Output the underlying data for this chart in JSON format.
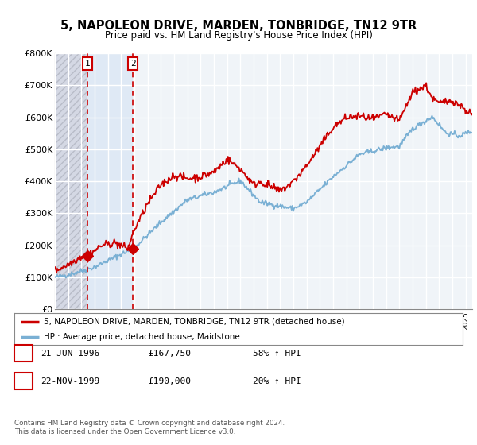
{
  "title": "5, NAPOLEON DRIVE, MARDEN, TONBRIDGE, TN12 9TR",
  "subtitle": "Price paid vs. HM Land Registry's House Price Index (HPI)",
  "legend_line1": "5, NAPOLEON DRIVE, MARDEN, TONBRIDGE, TN12 9TR (detached house)",
  "legend_line2": "HPI: Average price, detached house, Maidstone",
  "transaction1_date_label": "21-JUN-1996",
  "transaction1_price_label": "£167,750",
  "transaction1_hpi_label": "58% ↑ HPI",
  "transaction2_date_label": "22-NOV-1999",
  "transaction2_price_label": "£190,000",
  "transaction2_hpi_label": "20% ↑ HPI",
  "footnote": "Contains HM Land Registry data © Crown copyright and database right 2024.\nThis data is licensed under the Open Government Licence v3.0.",
  "line_color_red": "#cc0000",
  "line_color_blue": "#7ab0d4",
  "marker1_date": 1996.47,
  "marker2_date": 1999.89,
  "marker1_price": 167750,
  "marker2_price": 190000,
  "ylim_max": 800000,
  "xmin": 1994.0,
  "xmax": 2025.5,
  "hatch_color": "#c8ccd8",
  "shade_color": "#dce8f5",
  "grid_color": "#d0d8e8",
  "bg_color": "#f0f4f8"
}
